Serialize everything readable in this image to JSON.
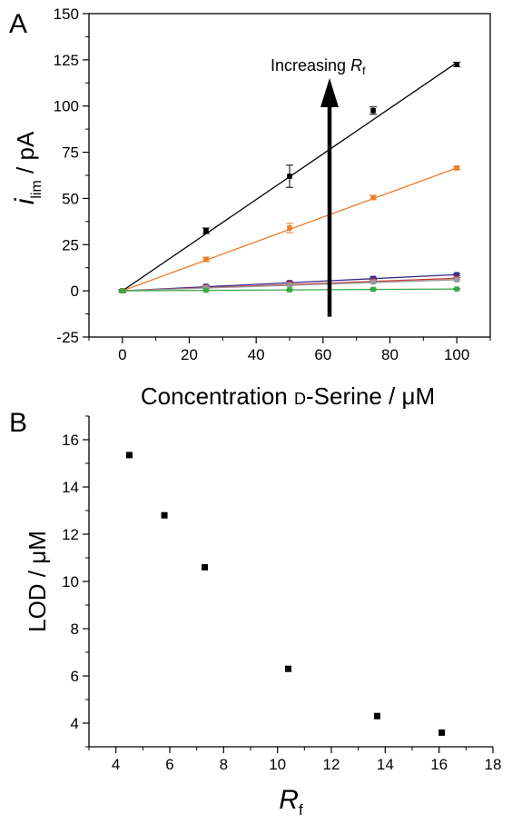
{
  "chart_data": [
    {
      "panel": "A",
      "type": "line",
      "xlabel": "Concentration D-Serine / μM",
      "xlabel_parts": {
        "pre": "Concentration ",
        "smallcap": "D",
        "post": "-Serine / μM"
      },
      "ylabel_parts": {
        "italic": "i",
        "sub": "lim",
        "post": " / pA"
      },
      "xlim": [
        -10,
        110
      ],
      "ylim": [
        -25,
        150
      ],
      "xticks": [
        0,
        20,
        40,
        60,
        80,
        100
      ],
      "yticks": [
        -25,
        0,
        25,
        50,
        75,
        100,
        125,
        150
      ],
      "x": [
        0,
        25,
        50,
        75,
        100
      ],
      "series": [
        {
          "color": "#000000",
          "values": [
            0,
            32.5,
            62,
            97.5,
            122.5
          ],
          "errors": [
            0.8,
            1.5,
            6,
            2,
            1.2
          ],
          "fit": [
            0,
            123.5
          ]
        },
        {
          "color": "#f07c28",
          "values": [
            0,
            17,
            34,
            50.5,
            66.5
          ],
          "errors": [
            0.5,
            1.2,
            2.5,
            1.2,
            0.8
          ],
          "fit": [
            0,
            66.5
          ]
        },
        {
          "color": "#3a2a8c",
          "values": [
            0,
            2.5,
            4.5,
            6.8,
            8.8
          ],
          "errors": [
            0.3,
            0.5,
            0.6,
            0.6,
            0.5
          ],
          "fit": [
            0,
            8.8
          ]
        },
        {
          "color": "#c63a3a",
          "values": [
            0,
            2.0,
            3.8,
            5.3,
            6.8
          ],
          "errors": [
            0.3,
            0.4,
            0.5,
            0.5,
            0.4
          ],
          "fit": [
            0,
            6.8
          ]
        },
        {
          "color": "#9a9a9a",
          "values": [
            0,
            1.6,
            3.2,
            4.8,
            6.0
          ],
          "errors": [
            0.3,
            0.4,
            0.5,
            0.5,
            0.4
          ],
          "fit": [
            0,
            6.0
          ]
        },
        {
          "color": "#3aa845",
          "values": [
            0,
            0.3,
            0.5,
            0.8,
            1.0
          ],
          "errors": [
            0.2,
            0.2,
            0.3,
            0.3,
            0.3
          ],
          "fit": [
            0,
            1.0
          ]
        }
      ],
      "annotation": {
        "text": "Increasing ",
        "italic": "R",
        "sub": "f"
      }
    },
    {
      "panel": "B",
      "type": "scatter",
      "xlabel_parts": {
        "italic": "R",
        "sub": "f"
      },
      "ylabel": "LOD / μM",
      "xlim": [
        3,
        18
      ],
      "ylim": [
        3,
        17
      ],
      "xticks": [
        4,
        6,
        8,
        10,
        12,
        14,
        16,
        18
      ],
      "yticks": [
        4,
        6,
        8,
        10,
        12,
        14,
        16
      ],
      "x": [
        4.5,
        5.8,
        7.3,
        10.4,
        13.7,
        16.1
      ],
      "values": [
        15.35,
        12.8,
        10.6,
        6.3,
        4.3,
        3.6
      ]
    }
  ],
  "labels": {
    "panel_a": "A",
    "panel_b": "B"
  }
}
